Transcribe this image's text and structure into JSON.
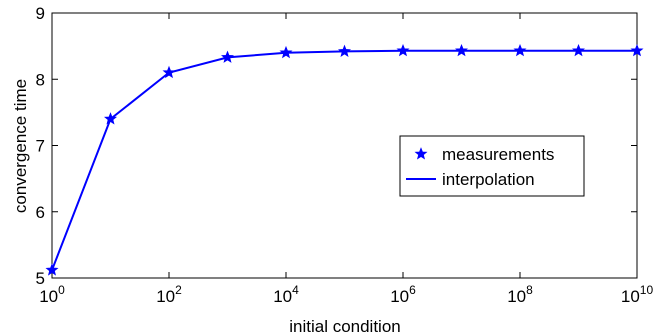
{
  "chart_data": {
    "type": "line",
    "title": "",
    "xlabel": "initial condition",
    "ylabel": "convergence time",
    "x_scale": "log",
    "x_base": 10,
    "xlim": [
      1,
      10000000000
    ],
    "ylim": [
      5,
      9
    ],
    "grid": false,
    "legend_position": "right-center",
    "x_ticks": [
      {
        "base": "10",
        "exp": "0",
        "value": 1
      },
      {
        "base": "10",
        "exp": "2",
        "value": 100
      },
      {
        "base": "10",
        "exp": "4",
        "value": 10000
      },
      {
        "base": "10",
        "exp": "6",
        "value": 1000000
      },
      {
        "base": "10",
        "exp": "8",
        "value": 100000000
      },
      {
        "base": "10",
        "exp": "10",
        "value": 10000000000
      }
    ],
    "y_ticks": [
      "5",
      "6",
      "7",
      "8",
      "9"
    ],
    "series": [
      {
        "name": "measurements",
        "style": "markers",
        "marker": "star",
        "color": "#0000ff",
        "x": [
          1,
          10,
          100,
          1000,
          10000,
          100000,
          1000000,
          10000000,
          100000000,
          1000000000,
          10000000000
        ],
        "y": [
          5.12,
          7.4,
          8.1,
          8.33,
          8.4,
          8.42,
          8.43,
          8.43,
          8.43,
          8.43,
          8.43
        ]
      },
      {
        "name": "interpolation",
        "style": "line",
        "color": "#0000ff",
        "x": [
          1,
          10,
          100,
          1000,
          10000,
          100000,
          1000000,
          10000000,
          100000000,
          1000000000,
          10000000000
        ],
        "y": [
          5.12,
          7.4,
          8.1,
          8.33,
          8.4,
          8.42,
          8.43,
          8.43,
          8.43,
          8.43,
          8.43
        ]
      }
    ]
  }
}
